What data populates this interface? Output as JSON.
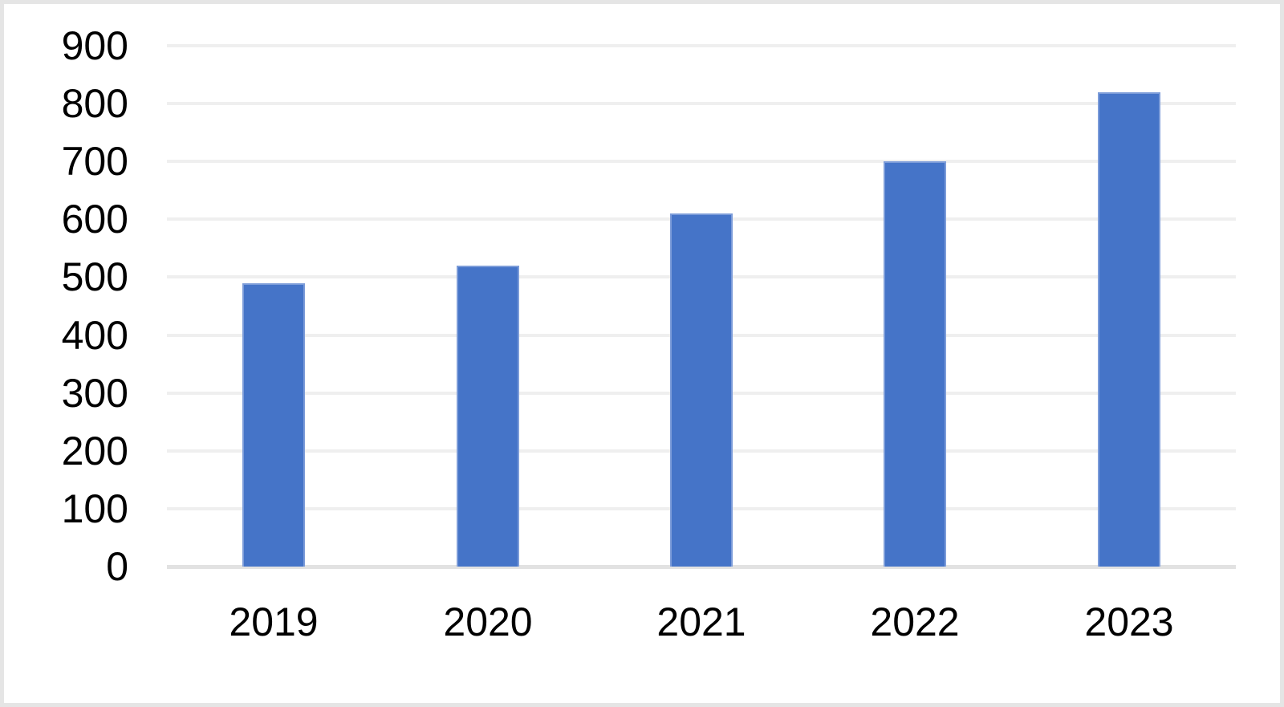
{
  "chart_data": {
    "type": "bar",
    "categories": [
      "2019",
      "2020",
      "2021",
      "2022",
      "2023"
    ],
    "values": [
      490,
      520,
      610,
      700,
      820
    ],
    "title": "",
    "xlabel": "",
    "ylabel": "",
    "ylim": [
      0,
      900
    ],
    "yticks": [
      0,
      100,
      200,
      300,
      400,
      500,
      600,
      700,
      800,
      900
    ],
    "grid": true,
    "legend": false,
    "colors": {
      "bar_fill": "#4574C8",
      "bar_edge": "#7C9CD9",
      "gridline": "#EFEFEF",
      "axis_baseline": "#E2E2E2",
      "tick_label": "#000000",
      "background": "#FFFFFF",
      "frame_border": "#E5E5E5"
    }
  }
}
